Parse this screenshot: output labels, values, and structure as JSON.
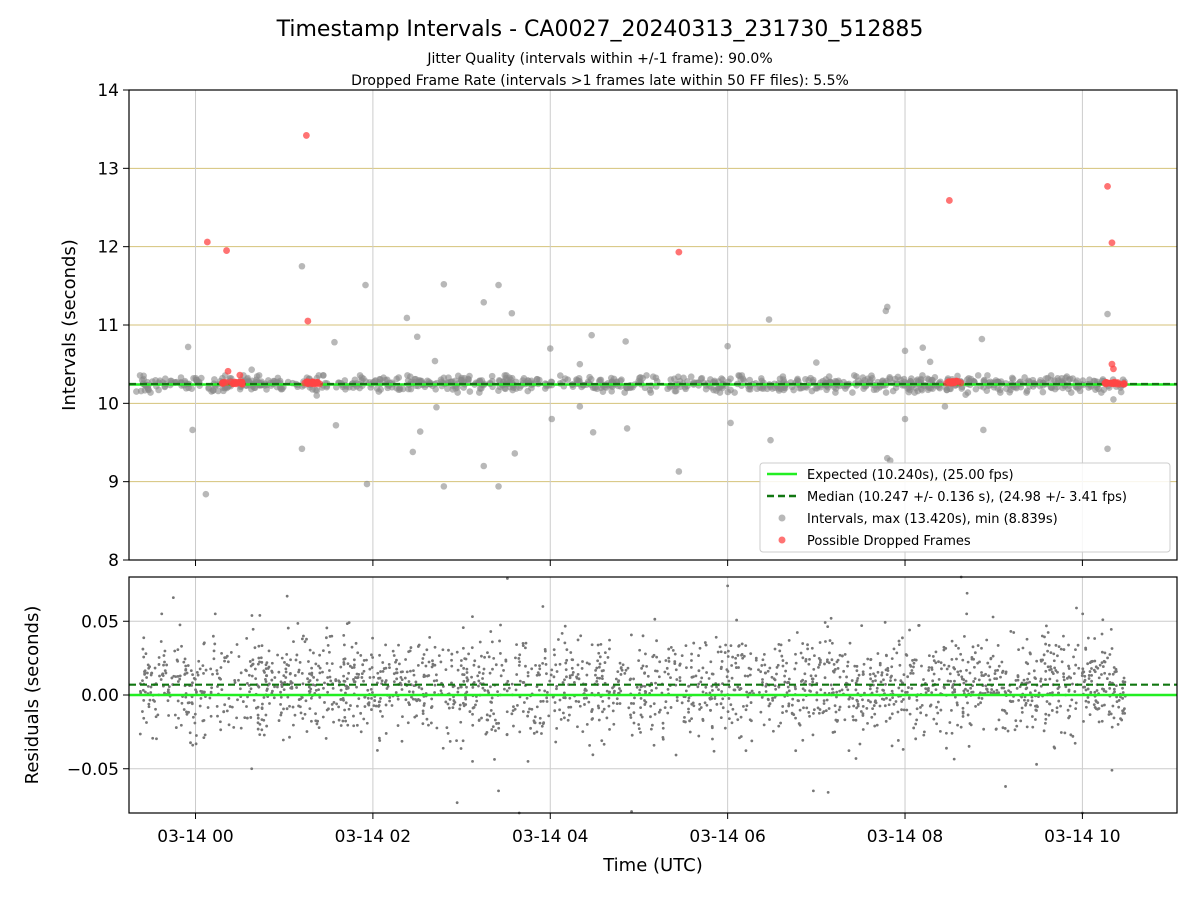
{
  "figure": {
    "title": "Timestamp Intervals - CA0027_20240313_231730_512885",
    "subtitle_line1": "Jitter Quality (intervals within +/-1 frame): 90.0%",
    "subtitle_line2": "Dropped Frame Rate (intervals >1 frames late within 50 FF files): 5.5%"
  },
  "colors": {
    "expected": "#22ee22",
    "median": "#117711",
    "intervals": "#888888",
    "dropped": "#ff4444",
    "hgrid_top": "#d4c27a",
    "vgrid": "#cccccc"
  },
  "chart_data": [
    {
      "type": "scatter",
      "name": "intervals-panel",
      "ylabel": "Intervals (seconds)",
      "ylim": [
        8,
        14
      ],
      "yticks": [
        8,
        9,
        10,
        11,
        12,
        13,
        14
      ],
      "x_axis": "time",
      "xlim": [
        "2024-03-13T23:15",
        "2024-03-14T11:04"
      ],
      "expected": 10.24,
      "median": 10.247,
      "legend": {
        "placement": "lower-right",
        "entries": [
          "Expected (10.240s), (25.00 fps)",
          "Median (10.247 +/- 0.136 s), (24.98 +/- 3.41 fps)",
          "Intervals, max (13.420s), min (8.839s)",
          "Possible Dropped Frames"
        ]
      },
      "outliers": [
        [
          "2024-03-13T23:20",
          10.15
        ],
        [
          "2024-03-13T23:28",
          10.18
        ],
        [
          "2024-03-13T23:55",
          10.72
        ],
        [
          "2024-03-13T23:58",
          9.66
        ],
        [
          "2024-03-14T00:07",
          8.84
        ],
        [
          "2024-03-14T00:22",
          10.21
        ],
        [
          "2024-03-14T00:38",
          10.43
        ],
        [
          "2024-03-14T00:58",
          10.18
        ],
        [
          "2024-03-14T01:12",
          9.42
        ],
        [
          "2024-03-14T01:12",
          11.75
        ],
        [
          "2024-03-14T01:22",
          10.1
        ],
        [
          "2024-03-14T01:34",
          10.78
        ],
        [
          "2024-03-14T01:35",
          9.72
        ],
        [
          "2024-03-14T01:55",
          11.51
        ],
        [
          "2024-03-14T01:56",
          8.97
        ],
        [
          "2024-03-14T02:04",
          10.15
        ],
        [
          "2024-03-14T02:23",
          11.09
        ],
        [
          "2024-03-14T02:27",
          9.38
        ],
        [
          "2024-03-14T02:30",
          10.85
        ],
        [
          "2024-03-14T02:32",
          9.64
        ],
        [
          "2024-03-14T02:42",
          10.54
        ],
        [
          "2024-03-14T02:43",
          9.95
        ],
        [
          "2024-03-14T02:48",
          11.52
        ],
        [
          "2024-03-14T02:48",
          8.94
        ],
        [
          "2024-03-14T03:15",
          11.29
        ],
        [
          "2024-03-14T03:15",
          9.2
        ],
        [
          "2024-03-14T03:25",
          11.51
        ],
        [
          "2024-03-14T03:25",
          8.94
        ],
        [
          "2024-03-14T03:34",
          11.15
        ],
        [
          "2024-03-14T03:36",
          9.36
        ],
        [
          "2024-03-14T04:00",
          10.7
        ],
        [
          "2024-03-14T04:01",
          9.8
        ],
        [
          "2024-03-14T04:20",
          10.5
        ],
        [
          "2024-03-14T04:20",
          9.96
        ],
        [
          "2024-03-14T04:28",
          10.87
        ],
        [
          "2024-03-14T04:29",
          9.63
        ],
        [
          "2024-03-14T04:51",
          10.79
        ],
        [
          "2024-03-14T04:52",
          9.68
        ],
        [
          "2024-03-14T05:27",
          9.13
        ],
        [
          "2024-03-14T06:00",
          10.73
        ],
        [
          "2024-03-14T06:02",
          9.75
        ],
        [
          "2024-03-14T06:28",
          11.07
        ],
        [
          "2024-03-14T06:29",
          9.53
        ],
        [
          "2024-03-14T07:00",
          10.52
        ],
        [
          "2024-03-14T07:47",
          11.18
        ],
        [
          "2024-03-14T07:48",
          11.23
        ],
        [
          "2024-03-14T07:48",
          9.3
        ],
        [
          "2024-03-14T07:50",
          9.27
        ],
        [
          "2024-03-14T08:00",
          10.67
        ],
        [
          "2024-03-14T08:00",
          9.8
        ],
        [
          "2024-03-14T08:12",
          10.71
        ],
        [
          "2024-03-14T08:17",
          10.53
        ],
        [
          "2024-03-14T08:27",
          9.96
        ],
        [
          "2024-03-14T08:41",
          10.11
        ],
        [
          "2024-03-14T08:52",
          10.82
        ],
        [
          "2024-03-14T08:53",
          9.66
        ],
        [
          "2024-03-14T09:22",
          10.26
        ],
        [
          "2024-03-14T09:46",
          10.32
        ],
        [
          "2024-03-14T10:17",
          11.14
        ],
        [
          "2024-03-14T10:17",
          9.42
        ],
        [
          "2024-03-14T10:21",
          10.05
        ]
      ],
      "dropped_frames": [
        [
          "2024-03-14T00:08",
          12.06
        ],
        [
          "2024-03-14T00:21",
          11.95
        ],
        [
          "2024-03-14T00:22",
          10.41
        ],
        [
          "2024-03-14T00:30",
          10.36
        ],
        [
          "2024-03-14T01:15",
          13.42
        ],
        [
          "2024-03-14T01:16",
          11.05
        ],
        [
          "2024-03-14T05:27",
          11.93
        ],
        [
          "2024-03-14T08:30",
          12.59
        ],
        [
          "2024-03-14T10:17",
          12.77
        ],
        [
          "2024-03-14T10:20",
          12.05
        ],
        [
          "2024-03-14T10:20",
          10.5
        ],
        [
          "2024-03-14T10:21",
          10.44
        ]
      ],
      "dropped_clusters": [
        {
          "start": "2024-03-14T00:18",
          "end": "2024-03-14T00:32",
          "value": 10.26
        },
        {
          "start": "2024-03-14T01:13",
          "end": "2024-03-14T01:24",
          "value": 10.26
        },
        {
          "start": "2024-03-14T08:28",
          "end": "2024-03-14T08:38",
          "value": 10.27
        },
        {
          "start": "2024-03-14T10:15",
          "end": "2024-03-14T10:29",
          "value": 10.26
        }
      ],
      "baseline_band": {
        "start": "2024-03-13T23:22",
        "end": "2024-03-14T10:29",
        "center": 10.247,
        "spread": 0.11
      }
    },
    {
      "type": "scatter",
      "name": "residuals-panel",
      "xlabel": "Time (UTC)",
      "ylabel": "Residuals (seconds)",
      "ylim": [
        -0.08,
        0.08
      ],
      "yticks": [
        -0.05,
        0.0,
        0.05
      ],
      "ytick_labels": [
        "−0.05",
        "0.00",
        "0.05"
      ],
      "xlim": [
        "2024-03-13T23:15",
        "2024-03-14T11:04"
      ],
      "xticks": [
        "2024-03-14T00:00",
        "2024-03-14T02:00",
        "2024-03-14T04:00",
        "2024-03-14T06:00",
        "2024-03-14T08:00",
        "2024-03-14T10:00"
      ],
      "xtick_labels": [
        "03-14 00",
        "03-14 02",
        "03-14 04",
        "03-14 06",
        "03-14 08",
        "03-14 10"
      ],
      "expected": 0.0,
      "median": 0.007,
      "residual_cloud": {
        "start": "2024-03-13T23:22",
        "end": "2024-03-14T10:29",
        "center": 0.006,
        "spread": 0.022
      },
      "outliers": [
        [
          "2024-03-13T23:45",
          0.066
        ],
        [
          "2024-03-14T00:38",
          -0.05
        ],
        [
          "2024-03-14T01:02",
          0.067
        ],
        [
          "2024-03-14T02:57",
          -0.073
        ],
        [
          "2024-03-14T03:25",
          -0.065
        ],
        [
          "2024-03-14T03:31",
          0.079
        ],
        [
          "2024-03-14T03:39",
          -0.08
        ],
        [
          "2024-03-14T03:55",
          0.06
        ],
        [
          "2024-03-14T04:55",
          -0.079
        ],
        [
          "2024-03-14T06:00",
          0.074
        ],
        [
          "2024-03-14T06:58",
          -0.065
        ],
        [
          "2024-03-14T07:08",
          -0.066
        ],
        [
          "2024-03-14T07:10",
          0.052
        ],
        [
          "2024-03-14T08:38",
          0.08
        ],
        [
          "2024-03-14T08:42",
          0.069
        ],
        [
          "2024-03-14T09:08",
          -0.062
        ],
        [
          "2024-03-14T09:29",
          -0.047
        ],
        [
          "2024-03-14T09:56",
          0.059
        ],
        [
          "2024-03-14T10:00",
          -0.08
        ],
        [
          "2024-03-14T10:20",
          -0.051
        ]
      ]
    }
  ]
}
